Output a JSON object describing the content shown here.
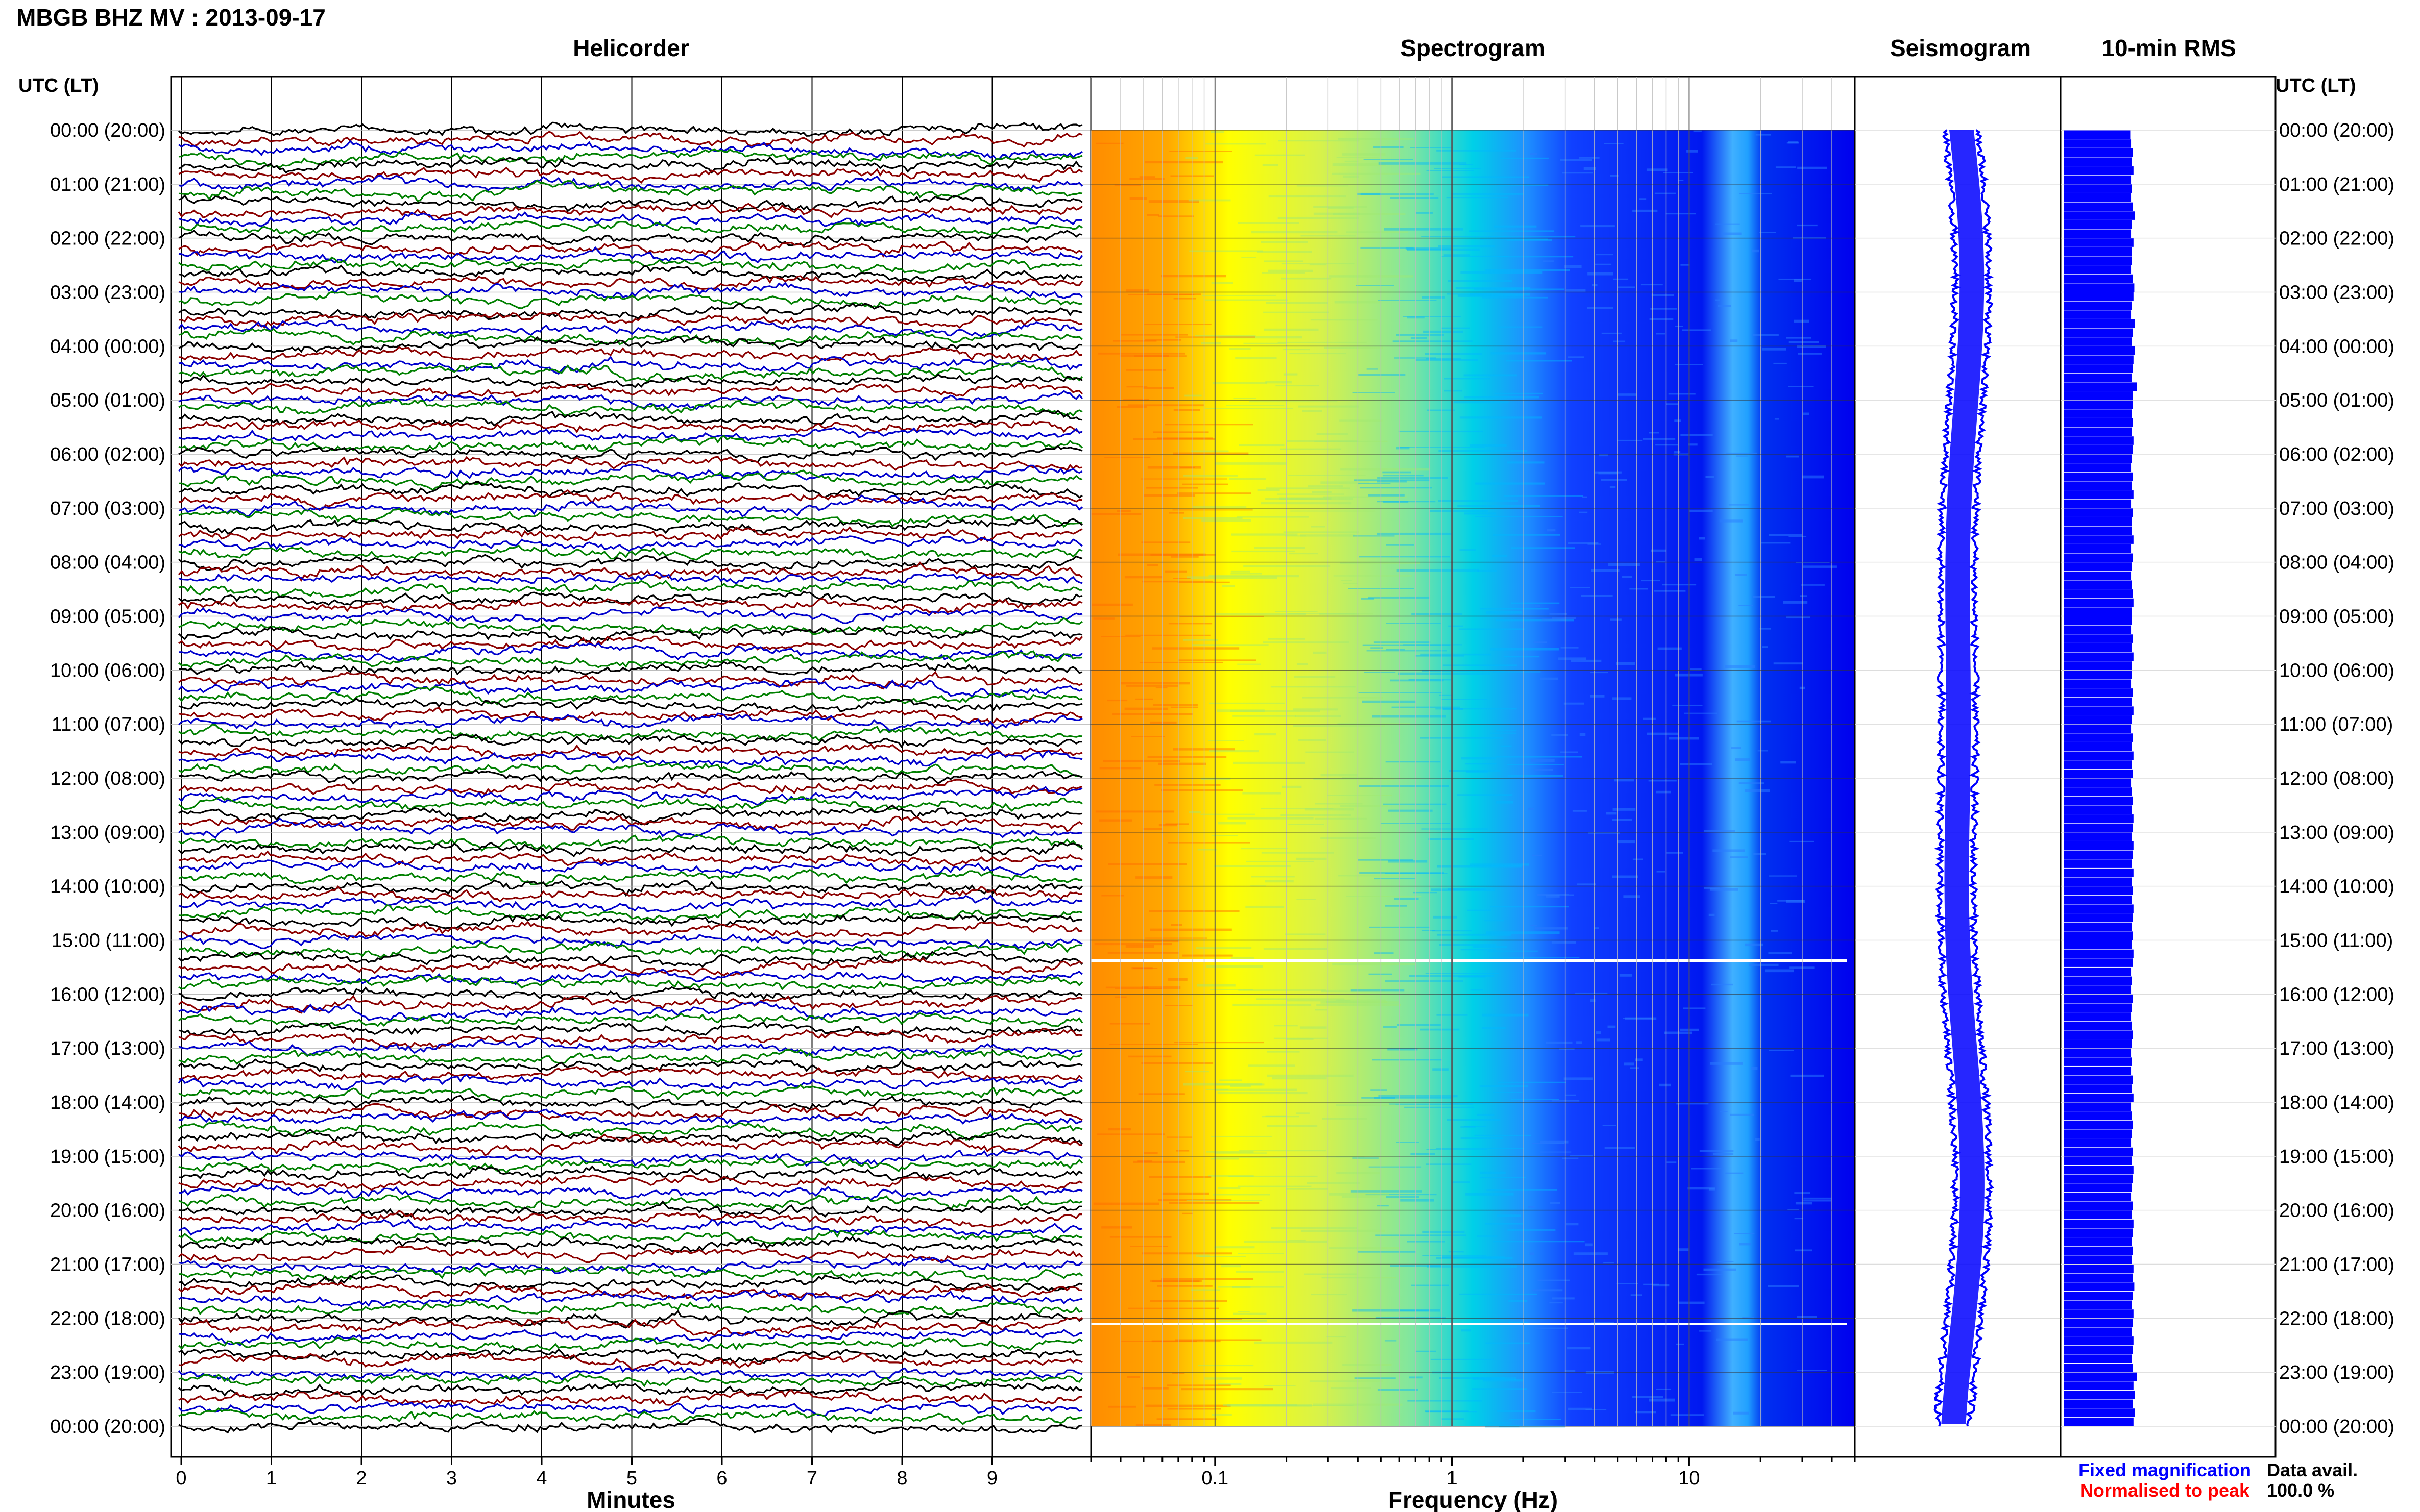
{
  "header": {
    "title": "MBGB BHZ MV : 2013-09-17",
    "left_axis_label": "UTC (LT)",
    "right_axis_label": "UTC (LT)"
  },
  "panels": {
    "helicorder": "Helicorder",
    "spectrogram": "Spectrogram",
    "seismogram": "Seismogram",
    "rms": "10-min RMS"
  },
  "time_labels": [
    "00:00 (20:00)",
    "01:00 (21:00)",
    "02:00 (22:00)",
    "03:00 (23:00)",
    "04:00 (00:00)",
    "05:00 (01:00)",
    "06:00 (02:00)",
    "07:00 (03:00)",
    "08:00 (04:00)",
    "09:00 (05:00)",
    "10:00 (06:00)",
    "11:00 (07:00)",
    "12:00 (08:00)",
    "13:00 (09:00)",
    "14:00 (10:00)",
    "15:00 (11:00)",
    "16:00 (12:00)",
    "17:00 (13:00)",
    "18:00 (14:00)",
    "19:00 (15:00)",
    "20:00 (16:00)",
    "21:00 (17:00)",
    "22:00 (18:00)",
    "23:00 (19:00)",
    "00:00 (20:00)"
  ],
  "legend": {
    "fixed": "Fixed magnification",
    "normalised": "Normalised to peak",
    "fixed_color": "#0000ff",
    "normalised_color": "#ff0000"
  },
  "data_avail": {
    "label": "Data avail.",
    "value": "100.0 %"
  },
  "chart_data": [
    {
      "type": "line",
      "panel": "helicorder",
      "title": "Helicorder",
      "xlabel": "Minutes",
      "x_ticks": [
        "0",
        "1",
        "2",
        "3",
        "4",
        "5",
        "6",
        "7",
        "8",
        "9"
      ],
      "xlim": [
        0,
        10
      ],
      "traces_per_hour": 6,
      "trace_colors": [
        "#000000",
        "#8b0000",
        "#0000cd",
        "#008000"
      ],
      "grid": true
    },
    {
      "type": "heatmap",
      "panel": "spectrogram",
      "title": "Spectrogram",
      "xlabel": "Frequency (Hz)",
      "x_scale": "log",
      "xlim": [
        0.03,
        50
      ],
      "x_ticks": [
        "0.1",
        "1",
        "10"
      ],
      "colormap": [
        "#ff8c00",
        "#ffff00",
        "#00d8e8",
        "#0000ff"
      ],
      "grid": true
    },
    {
      "type": "line",
      "panel": "seismogram",
      "title": "Seismogram",
      "color": "#0000ff"
    },
    {
      "type": "bar",
      "panel": "rms",
      "title": "10-min RMS",
      "orientation": "horizontal",
      "color": "#0000ff",
      "bins": 144,
      "values": [
        0.82,
        0.83,
        0.85,
        0.84,
        0.86,
        0.83,
        0.84,
        0.83,
        0.85,
        0.88,
        0.84,
        0.83,
        0.86,
        0.84,
        0.84,
        0.83,
        0.85,
        0.87,
        0.86,
        0.84,
        0.83,
        0.88,
        0.85,
        0.84,
        0.88,
        0.86,
        0.85,
        0.84,
        0.9,
        0.85,
        0.85,
        0.84,
        0.85,
        0.84,
        0.86,
        0.85,
        0.84,
        0.83,
        0.85,
        0.84,
        0.86,
        0.83,
        0.85,
        0.84,
        0.84,
        0.86,
        0.83,
        0.85,
        0.84,
        0.83,
        0.84,
        0.85,
        0.86,
        0.84,
        0.84,
        0.83,
        0.85,
        0.84,
        0.86,
        0.84,
        0.84,
        0.83,
        0.85,
        0.84,
        0.86,
        0.84,
        0.83,
        0.85,
        0.84,
        0.86,
        0.84,
        0.85,
        0.83,
        0.84,
        0.85,
        0.84,
        0.86,
        0.85,
        0.84,
        0.86,
        0.85,
        0.84,
        0.86,
        0.84,
        0.85,
        0.84,
        0.86,
        0.85,
        0.84,
        0.85,
        0.84,
        0.86,
        0.85,
        0.83,
        0.84,
        0.83,
        0.85,
        0.84,
        0.83,
        0.84,
        0.85,
        0.84,
        0.83,
        0.84,
        0.83,
        0.85,
        0.84,
        0.86,
        0.83,
        0.84,
        0.85,
        0.84,
        0.83,
        0.85,
        0.84,
        0.86,
        0.85,
        0.84,
        0.83,
        0.85,
        0.84,
        0.86,
        0.85,
        0.84,
        0.85,
        0.84,
        0.86,
        0.85,
        0.87,
        0.85,
        0.84,
        0.86,
        0.85,
        0.84,
        0.86,
        0.85,
        0.84,
        0.85,
        0.9,
        0.86,
        0.88,
        0.85,
        0.88,
        0.86
      ]
    }
  ]
}
